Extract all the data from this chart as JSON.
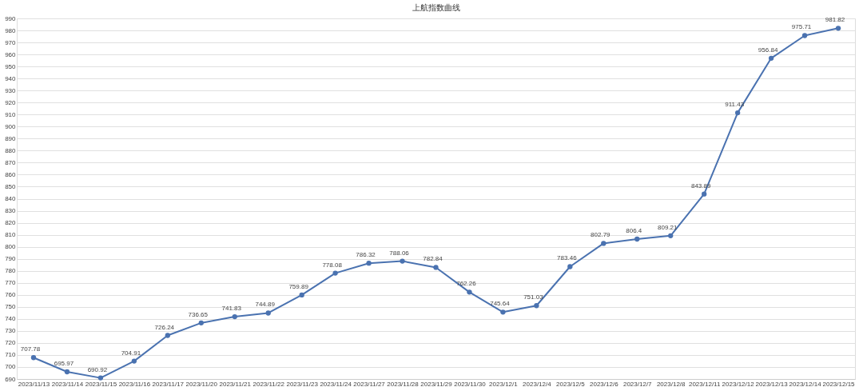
{
  "chart_data": {
    "type": "line",
    "title": "上航指数曲线",
    "categories": [
      "2023/11/13",
      "2023/11/14",
      "2023/11/15",
      "2023/11/16",
      "2023/11/17",
      "2023/11/20",
      "2023/11/21",
      "2023/11/22",
      "2023/11/23",
      "2023/11/24",
      "2023/11/27",
      "2023/11/28",
      "2023/11/29",
      "2023/11/30",
      "2023/12/1",
      "2023/12/4",
      "2023/12/5",
      "2023/12/6",
      "2023/12/7",
      "2023/12/8",
      "2023/12/11",
      "2023/12/12",
      "2023/12/13",
      "2023/12/14",
      "2023/12/15"
    ],
    "series": [
      {
        "color": "#4a72b0",
        "values": [
          707.78,
          695.97,
          690.92,
          704.91,
          726.24,
          736.65,
          741.83,
          744.89,
          759.89,
          778.08,
          786.32,
          788.06,
          782.84,
          762.26,
          745.64,
          751.03,
          783.46,
          802.79,
          806.4,
          809.21,
          843.89,
          911.43,
          956.84,
          975.71,
          981.82
        ]
      }
    ],
    "ylim": [
      690,
      990
    ],
    "yticks": [
      690,
      700,
      710,
      720,
      730,
      740,
      750,
      760,
      770,
      780,
      790,
      800,
      810,
      820,
      830,
      840,
      850,
      860,
      870,
      880,
      890,
      900,
      910,
      920,
      930,
      940,
      950,
      960,
      970,
      980,
      990
    ],
    "grid": "y",
    "marker": "circle",
    "line_style": "solid",
    "data_labels": true,
    "legend": false
  }
}
